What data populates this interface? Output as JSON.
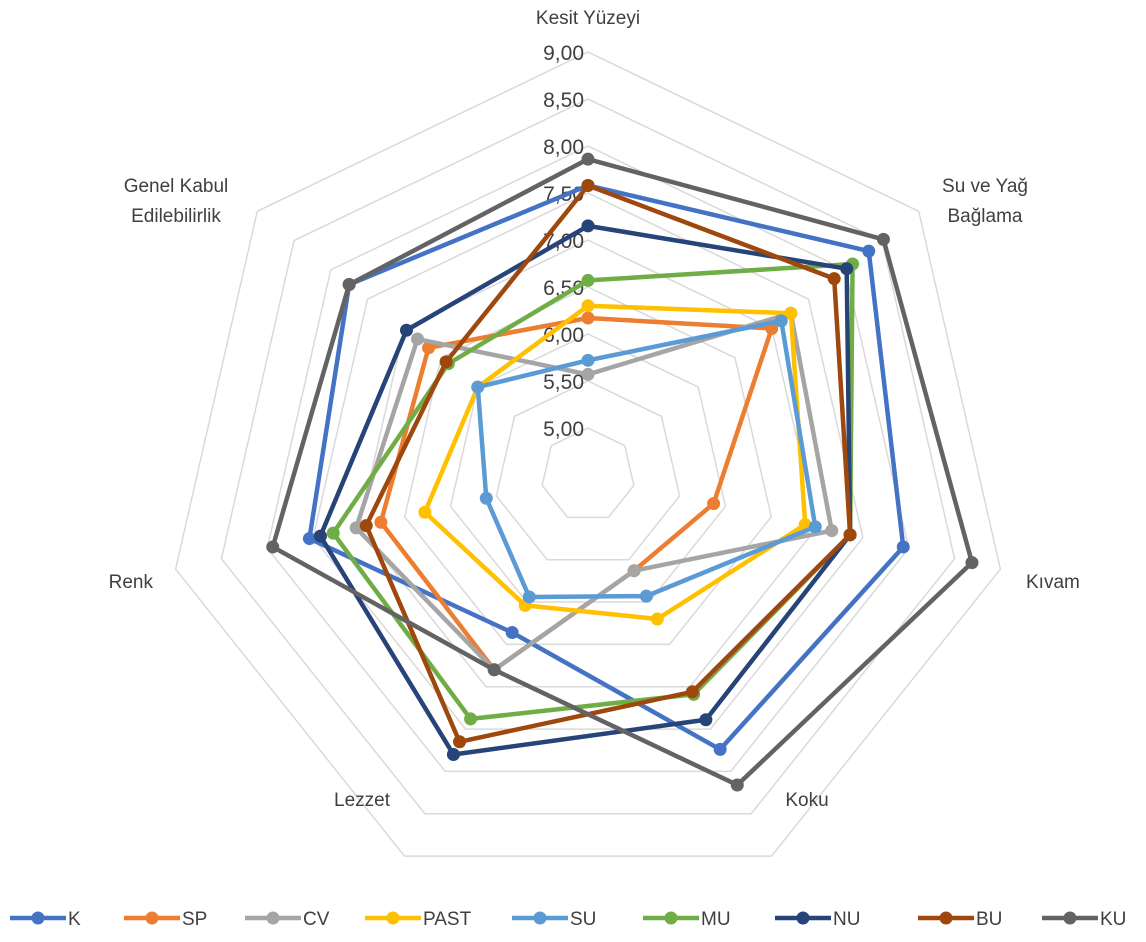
{
  "chart_data": {
    "type": "radar",
    "categories": [
      "Kesit Yüzeyi",
      "Su ve Yağ Bağlama",
      "Kıvam",
      "Koku",
      "Lezzet",
      "Renk",
      "Genel Kabul Edilebilirlik"
    ],
    "rlim": [
      4.5,
      9.0
    ],
    "ticks": [
      "5,00",
      "5,50",
      "6,00",
      "6,50",
      "7,00",
      "7,50",
      "8,00",
      "8,50",
      "9,00"
    ],
    "tick_values": [
      5.0,
      5.5,
      6.0,
      6.5,
      7.0,
      7.5,
      8.0,
      8.5,
      9.0
    ],
    "grid": true,
    "legend_position": "bottom",
    "series": [
      {
        "name": "K",
        "color": "#4472C4",
        "values": [
          7.58,
          8.32,
          7.94,
          7.74,
          6.36,
          7.54,
          7.75
        ]
      },
      {
        "name": "SP",
        "color": "#ED7D31",
        "values": [
          6.17,
          7.0,
          5.87,
          5.63,
          6.8,
          6.76,
          6.67
        ]
      },
      {
        "name": "CV",
        "color": "#A5A5A5",
        "values": [
          5.57,
          7.26,
          7.16,
          5.63,
          6.8,
          7.03,
          6.82
        ]
      },
      {
        "name": "PAST",
        "color": "#FFC000",
        "values": [
          6.3,
          7.26,
          6.87,
          6.2,
          6.04,
          6.28,
          6.0
        ]
      },
      {
        "name": "SU",
        "color": "#5B9BD5",
        "values": [
          5.72,
          7.13,
          6.98,
          5.93,
          5.94,
          5.61,
          6.0
        ]
      },
      {
        "name": "MU",
        "color": "#70AD47",
        "values": [
          6.57,
          8.1,
          7.36,
          7.09,
          7.38,
          7.28,
          6.4
        ]
      },
      {
        "name": "NU",
        "color": "#264478",
        "values": [
          7.15,
          8.02,
          7.36,
          7.39,
          7.8,
          7.42,
          6.97
        ]
      },
      {
        "name": "BU",
        "color": "#9E480E",
        "values": [
          7.58,
          7.85,
          7.36,
          7.06,
          7.65,
          6.92,
          6.43
        ]
      },
      {
        "name": "KU",
        "color": "#636363",
        "values": [
          7.86,
          8.52,
          8.69,
          8.16,
          6.8,
          7.94,
          7.75
        ]
      }
    ]
  }
}
